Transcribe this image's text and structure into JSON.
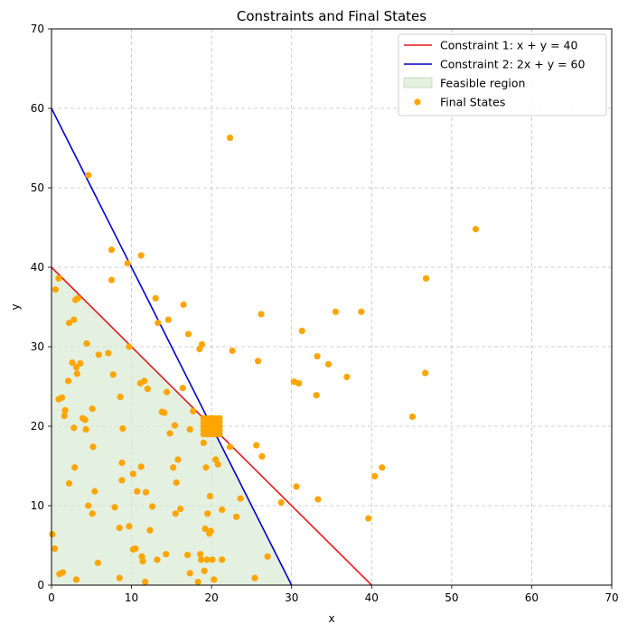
{
  "chart_data": {
    "type": "scatter",
    "title": "Constraints and Final States",
    "xlabel": "x",
    "ylabel": "y",
    "xlim": [
      0,
      70
    ],
    "ylim": [
      0,
      70
    ],
    "xticks": [
      0,
      10,
      20,
      30,
      40,
      50,
      60,
      70
    ],
    "yticks": [
      0,
      10,
      20,
      30,
      40,
      50,
      60,
      70
    ],
    "grid": true,
    "legend_position": "top-right",
    "lines": [
      {
        "name": "Constraint 1: x + y = 40",
        "color": "#e31a1c",
        "points": [
          [
            0,
            40
          ],
          [
            40,
            0
          ]
        ]
      },
      {
        "name": "Constraint 2: 2x + y = 60",
        "color": "#0000cc",
        "points": [
          [
            0,
            60
          ],
          [
            30,
            0
          ]
        ]
      }
    ],
    "region": {
      "name": "Feasible region",
      "color": "#d9ead3",
      "vertices": [
        [
          0,
          0
        ],
        [
          0,
          40
        ],
        [
          20,
          20
        ],
        [
          30,
          0
        ]
      ]
    },
    "series": [
      {
        "name": "Final States",
        "color": "#ffa500",
        "points": [
          [
            0.1,
            6.4
          ],
          [
            0.4,
            4.6
          ],
          [
            0.5,
            37.2
          ],
          [
            0.9,
            38.6
          ],
          [
            0.9,
            23.4
          ],
          [
            1.0,
            1.4
          ],
          [
            1.3,
            23.6
          ],
          [
            1.4,
            1.6
          ],
          [
            1.6,
            21.3
          ],
          [
            1.7,
            22.0
          ],
          [
            2.1,
            25.7
          ],
          [
            2.2,
            12.8
          ],
          [
            2.2,
            33.0
          ],
          [
            2.6,
            28.0
          ],
          [
            2.8,
            33.4
          ],
          [
            2.8,
            19.8
          ],
          [
            2.9,
            14.8
          ],
          [
            3.0,
            35.9
          ],
          [
            3.1,
            27.4
          ],
          [
            3.2,
            26.6
          ],
          [
            3.3,
            36.1
          ],
          [
            3.1,
            0.7
          ],
          [
            3.6,
            27.9
          ],
          [
            3.9,
            21.0
          ],
          [
            4.2,
            20.8
          ],
          [
            4.3,
            19.6
          ],
          [
            4.4,
            30.4
          ],
          [
            4.6,
            51.6
          ],
          [
            4.6,
            10.0
          ],
          [
            5.1,
            22.2
          ],
          [
            5.1,
            9.0
          ],
          [
            5.2,
            17.4
          ],
          [
            5.4,
            11.8
          ],
          [
            5.8,
            2.8
          ],
          [
            5.9,
            29.0
          ],
          [
            7.1,
            29.2
          ],
          [
            7.5,
            42.2
          ],
          [
            7.5,
            38.4
          ],
          [
            7.7,
            26.5
          ],
          [
            7.9,
            9.8
          ],
          [
            8.5,
            0.9
          ],
          [
            8.5,
            7.2
          ],
          [
            8.6,
            23.7
          ],
          [
            8.8,
            15.4
          ],
          [
            8.8,
            13.2
          ],
          [
            8.9,
            19.7
          ],
          [
            9.5,
            40.5
          ],
          [
            9.7,
            7.4
          ],
          [
            9.7,
            30.0
          ],
          [
            10.2,
            14.0
          ],
          [
            10.2,
            4.5
          ],
          [
            10.5,
            4.6
          ],
          [
            10.7,
            11.8
          ],
          [
            11.1,
            25.4
          ],
          [
            11.2,
            41.5
          ],
          [
            11.2,
            14.9
          ],
          [
            11.3,
            3.6
          ],
          [
            11.4,
            3.0
          ],
          [
            11.6,
            25.7
          ],
          [
            11.7,
            0.4
          ],
          [
            11.8,
            11.7
          ],
          [
            12.0,
            24.7
          ],
          [
            12.3,
            6.9
          ],
          [
            12.6,
            9.9
          ],
          [
            13.0,
            36.1
          ],
          [
            13.2,
            3.2
          ],
          [
            13.3,
            33.0
          ],
          [
            13.8,
            21.8
          ],
          [
            14.1,
            21.7
          ],
          [
            14.3,
            3.9
          ],
          [
            14.4,
            24.3
          ],
          [
            14.6,
            33.4
          ],
          [
            14.8,
            19.1
          ],
          [
            15.2,
            14.8
          ],
          [
            15.4,
            20.1
          ],
          [
            15.5,
            9.0
          ],
          [
            15.6,
            12.9
          ],
          [
            15.8,
            15.8
          ],
          [
            16.1,
            9.6
          ],
          [
            16.4,
            24.8
          ],
          [
            16.5,
            35.3
          ],
          [
            17.0,
            3.8
          ],
          [
            17.1,
            31.6
          ],
          [
            17.3,
            1.5
          ],
          [
            17.3,
            19.6
          ],
          [
            17.7,
            21.9
          ],
          [
            18.3,
            0.4
          ],
          [
            18.5,
            29.7
          ],
          [
            18.6,
            3.9
          ],
          [
            18.7,
            3.2
          ],
          [
            18.8,
            30.3
          ],
          [
            19.0,
            17.9
          ],
          [
            19.1,
            1.8
          ],
          [
            19.2,
            7.1
          ],
          [
            19.3,
            14.8
          ],
          [
            19.4,
            3.2
          ],
          [
            19.5,
            9.0
          ],
          [
            19.7,
            6.5
          ],
          [
            19.8,
            11.2
          ],
          [
            19.9,
            6.8
          ],
          [
            20.1,
            3.2
          ],
          [
            20.3,
            0.7
          ],
          [
            20.5,
            15.8
          ],
          [
            20.8,
            15.2
          ],
          [
            21.3,
            9.5
          ],
          [
            21.3,
            3.2
          ],
          [
            22.3,
            56.3
          ],
          [
            22.3,
            17.4
          ],
          [
            22.6,
            29.5
          ],
          [
            23.1,
            8.6
          ],
          [
            23.6,
            10.9
          ],
          [
            25.4,
            0.9
          ],
          [
            25.6,
            17.6
          ],
          [
            25.8,
            28.2
          ],
          [
            26.2,
            34.1
          ],
          [
            26.3,
            16.2
          ],
          [
            27.0,
            3.6
          ],
          [
            28.7,
            10.4
          ],
          [
            30.3,
            25.6
          ],
          [
            30.6,
            12.4
          ],
          [
            30.9,
            25.4
          ],
          [
            31.3,
            32.0
          ],
          [
            33.1,
            23.9
          ],
          [
            33.2,
            28.8
          ],
          [
            33.3,
            10.8
          ],
          [
            34.6,
            27.8
          ],
          [
            35.5,
            34.4
          ],
          [
            36.9,
            26.2
          ],
          [
            38.7,
            34.4
          ],
          [
            39.6,
            8.4
          ],
          [
            40.4,
            13.7
          ],
          [
            41.3,
            14.8
          ],
          [
            45.1,
            21.2
          ],
          [
            46.7,
            26.7
          ],
          [
            46.8,
            38.6
          ],
          [
            53.0,
            44.8
          ],
          [
            19.0,
            19.0
          ],
          [
            19.0,
            19.5
          ],
          [
            19.0,
            20.0
          ],
          [
            19.0,
            20.5
          ],
          [
            19.0,
            21.0
          ],
          [
            19.5,
            19.0
          ],
          [
            19.5,
            19.5
          ],
          [
            19.5,
            20.0
          ],
          [
            19.5,
            20.5
          ],
          [
            19.5,
            21.0
          ],
          [
            20.0,
            19.0
          ],
          [
            20.0,
            19.5
          ],
          [
            20.0,
            20.0
          ],
          [
            20.0,
            20.5
          ],
          [
            20.0,
            21.0
          ],
          [
            20.5,
            19.0
          ],
          [
            20.5,
            19.5
          ],
          [
            20.5,
            20.0
          ],
          [
            20.5,
            20.5
          ],
          [
            20.5,
            21.0
          ],
          [
            21.0,
            19.0
          ],
          [
            21.0,
            19.5
          ],
          [
            21.0,
            20.0
          ],
          [
            21.0,
            20.5
          ],
          [
            21.0,
            21.0
          ]
        ]
      }
    ]
  }
}
